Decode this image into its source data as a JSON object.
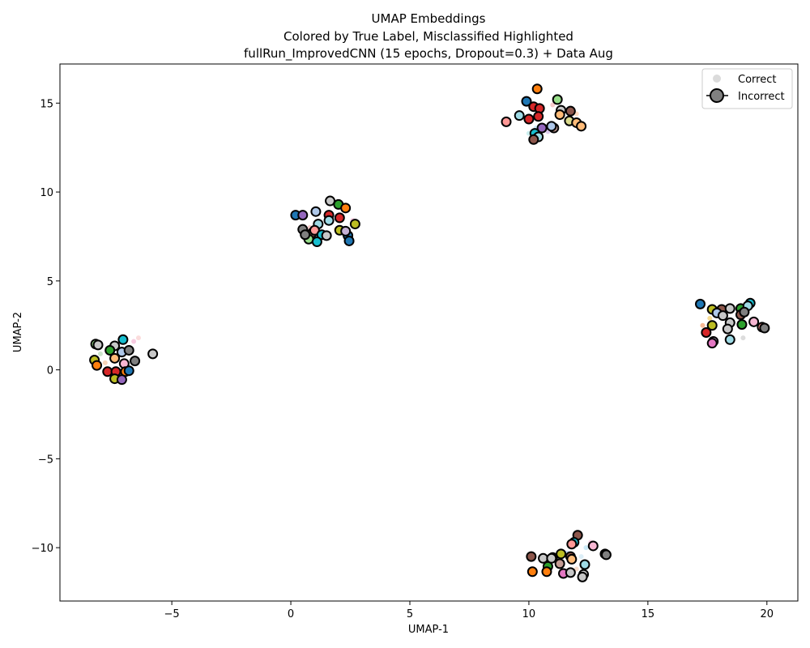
{
  "chart_data": {
    "type": "scatter",
    "title": [
      "UMAP Embeddings",
      "Colored by True Label, Misclassified Highlighted",
      "fullRun_ImprovedCNN (15 epochs, Dropout=0.3) + Data Aug"
    ],
    "xlabel": "UMAP-1",
    "ylabel": "UMAP-2",
    "xlim": [
      -9.7,
      21.3
    ],
    "ylim": [
      -13.0,
      17.2
    ],
    "xticks": [
      -5,
      0,
      5,
      10,
      15,
      20
    ],
    "yticks": [
      -10,
      -5,
      0,
      5,
      10,
      15
    ],
    "grid": false,
    "legend": {
      "placement": "top-right",
      "entries": [
        {
          "label": "Correct",
          "style": "small-grey-dot"
        },
        {
          "label": "Incorrect",
          "style": "large-outlined-dot"
        }
      ]
    },
    "series": [
      {
        "name": "Correct",
        "color": "#cccccc",
        "points": [
          [
            0.8,
            8.0,
            "#f0a0a0"
          ],
          [
            1.5,
            8.6,
            "#a0c8f0"
          ],
          [
            1.9,
            7.9,
            "#ffd080"
          ],
          [
            2.6,
            8.4,
            "#f0a0c8"
          ],
          [
            1.2,
            7.4,
            "#c8e0a0"
          ],
          [
            2.3,
            7.7,
            "#aaaaaa"
          ],
          [
            0.6,
            7.7,
            "#ffbb99"
          ],
          [
            10.3,
            13.6,
            "#a0d8f0"
          ],
          [
            10.8,
            13.4,
            "#c0a0e0"
          ],
          [
            11.4,
            14.2,
            "#f0e080"
          ],
          [
            12.0,
            14.4,
            "#ffc090"
          ],
          [
            11.0,
            14.9,
            "#f0a0a0"
          ],
          [
            10.0,
            13.3,
            "#a0e0e0"
          ],
          [
            11.7,
            13.8,
            "#d0d0d0"
          ],
          [
            -7.8,
            0.4,
            "#f0b080"
          ],
          [
            -6.6,
            1.6,
            "#f0a0c8"
          ],
          [
            -7.4,
            -0.4,
            "#f08080"
          ],
          [
            -8.0,
            0.9,
            "#a0d0a0"
          ],
          [
            -6.9,
            0.2,
            "#a0c0f0"
          ],
          [
            -6.4,
            1.8,
            "#f8c0c0"
          ],
          [
            17.6,
            2.9,
            "#f0c040"
          ],
          [
            18.4,
            2.2,
            "#a0c0f0"
          ],
          [
            19.4,
            2.6,
            "#f0a0a0"
          ],
          [
            18.9,
            3.3,
            "#a0d8a0"
          ],
          [
            17.3,
            2.5,
            "#f08040"
          ],
          [
            19.0,
            1.8,
            "#c0c0c0"
          ],
          [
            12.4,
            -10.0,
            "#a0d8f0"
          ],
          [
            12.6,
            -9.7,
            "#f0b0d0"
          ],
          [
            12.2,
            -10.5,
            "#c0e0f0"
          ],
          [
            11.6,
            -10.3,
            "#a0c0f0"
          ],
          [
            12.0,
            -11.2,
            "#f0c0a0"
          ],
          [
            11.2,
            -11.0,
            "#d0d0d0"
          ]
        ]
      },
      {
        "name": "Incorrect",
        "points": [
          [
            0.2,
            8.7,
            "#1f77b4"
          ],
          [
            0.5,
            8.7,
            "#9467bd"
          ],
          [
            1.05,
            8.9,
            "#aec7e8"
          ],
          [
            1.65,
            9.5,
            "#c7c7c7"
          ],
          [
            2.0,
            9.3,
            "#2ca02c"
          ],
          [
            2.3,
            9.1,
            "#ff7f0e"
          ],
          [
            1.6,
            8.7,
            "#d62728"
          ],
          [
            2.05,
            8.55,
            "#d62728"
          ],
          [
            1.15,
            8.2,
            "#9edae5"
          ],
          [
            1.6,
            8.4,
            "#9edae5"
          ],
          [
            2.7,
            8.2,
            "#bcbd22"
          ],
          [
            0.5,
            7.9,
            "#7f7f7f"
          ],
          [
            0.9,
            7.7,
            "#8c564b"
          ],
          [
            1.0,
            7.85,
            "#ff9896"
          ],
          [
            1.3,
            7.6,
            "#17becf"
          ],
          [
            1.5,
            7.55,
            "#c7c7c7"
          ],
          [
            2.05,
            7.85,
            "#bcbd22"
          ],
          [
            2.4,
            7.55,
            "#1f77b4"
          ],
          [
            0.75,
            7.35,
            "#98df8a"
          ],
          [
            1.1,
            7.2,
            "#17becf"
          ],
          [
            2.45,
            7.25,
            "#1f77b4"
          ],
          [
            0.6,
            7.6,
            "#7f7f7f"
          ],
          [
            2.3,
            7.8,
            "#c5b0d5"
          ],
          [
            10.35,
            15.8,
            "#ff7f0e"
          ],
          [
            9.9,
            15.1,
            "#1f77b4"
          ],
          [
            11.2,
            15.2,
            "#98df8a"
          ],
          [
            10.2,
            14.8,
            "#d62728"
          ],
          [
            10.45,
            14.7,
            "#d62728"
          ],
          [
            11.35,
            14.6,
            "#c7c7c7"
          ],
          [
            11.75,
            14.55,
            "#8c564b"
          ],
          [
            9.6,
            14.3,
            "#9edae5"
          ],
          [
            10.0,
            14.1,
            "#d62728"
          ],
          [
            10.4,
            14.25,
            "#d62728"
          ],
          [
            11.3,
            14.35,
            "#ffbb78"
          ],
          [
            11.7,
            14.0,
            "#dbdb8d"
          ],
          [
            12.0,
            13.9,
            "#ffbb78"
          ],
          [
            9.05,
            13.95,
            "#ff9896"
          ],
          [
            10.55,
            13.6,
            "#9467bd"
          ],
          [
            11.05,
            13.6,
            "#c49c94"
          ],
          [
            12.2,
            13.7,
            "#ffbb78"
          ],
          [
            10.25,
            13.3,
            "#17becf"
          ],
          [
            10.4,
            13.1,
            "#9edae5"
          ],
          [
            10.2,
            12.95,
            "#8c564b"
          ],
          [
            10.95,
            13.7,
            "#aec7e8"
          ],
          [
            -8.2,
            1.45,
            "#98df8a"
          ],
          [
            -7.05,
            1.7,
            "#17becf"
          ],
          [
            -7.4,
            1.35,
            "#c7c7c7"
          ],
          [
            -7.6,
            1.1,
            "#2ca02c"
          ],
          [
            -7.1,
            1.0,
            "#aec7e8"
          ],
          [
            -6.8,
            1.1,
            "#7f7f7f"
          ],
          [
            -5.8,
            0.9,
            "#c7c7c7"
          ],
          [
            -8.25,
            0.55,
            "#bcbd22"
          ],
          [
            -7.4,
            0.65,
            "#ffbb78"
          ],
          [
            -7.0,
            0.35,
            "#f7b6d2"
          ],
          [
            -6.55,
            0.5,
            "#7f7f7f"
          ],
          [
            -8.15,
            0.25,
            "#ff7f0e"
          ],
          [
            -7.7,
            -0.1,
            "#d62728"
          ],
          [
            -7.35,
            -0.1,
            "#d62728"
          ],
          [
            -6.95,
            -0.1,
            "#ff7f0e"
          ],
          [
            -6.8,
            -0.05,
            "#1f77b4"
          ],
          [
            -7.4,
            -0.5,
            "#bcbd22"
          ],
          [
            -7.1,
            -0.55,
            "#9467bd"
          ],
          [
            -8.1,
            1.4,
            "#c7c7c7"
          ],
          [
            17.2,
            3.7,
            "#1f77b4"
          ],
          [
            17.7,
            3.4,
            "#bcbd22"
          ],
          [
            18.1,
            3.4,
            "#8c564b"
          ],
          [
            18.45,
            3.45,
            "#c7c7c7"
          ],
          [
            18.9,
            3.45,
            "#2ca02c"
          ],
          [
            19.3,
            3.75,
            "#17becf"
          ],
          [
            19.2,
            3.6,
            "#9edae5"
          ],
          [
            17.9,
            3.2,
            "#aec7e8"
          ],
          [
            18.15,
            3.05,
            "#c7c7c7"
          ],
          [
            18.9,
            3.1,
            "#8c564b"
          ],
          [
            19.05,
            3.25,
            "#7f7f7f"
          ],
          [
            18.45,
            2.65,
            "#c7c7c7"
          ],
          [
            17.7,
            2.5,
            "#bcbd22"
          ],
          [
            18.95,
            2.55,
            "#2ca02c"
          ],
          [
            19.45,
            2.7,
            "#f7b6d2"
          ],
          [
            19.8,
            2.4,
            "#ff9896"
          ],
          [
            19.9,
            2.35,
            "#7f7f7f"
          ],
          [
            17.45,
            2.1,
            "#d62728"
          ],
          [
            17.75,
            1.6,
            "#c5b0d5"
          ],
          [
            17.7,
            1.5,
            "#e377c2"
          ],
          [
            18.45,
            1.7,
            "#9edae5"
          ],
          [
            18.35,
            2.3,
            "#c7c7c7"
          ],
          [
            12.05,
            -9.3,
            "#8c564b"
          ],
          [
            11.9,
            -9.7,
            "#17becf"
          ],
          [
            11.8,
            -9.8,
            "#ff9896"
          ],
          [
            12.7,
            -9.9,
            "#f7b6d2"
          ],
          [
            13.2,
            -10.35,
            "#c7c7c7"
          ],
          [
            13.25,
            -10.4,
            "#7f7f7f"
          ],
          [
            11.35,
            -10.35,
            "#bcbd22"
          ],
          [
            10.1,
            -10.5,
            "#8c564b"
          ],
          [
            10.6,
            -10.6,
            "#c7c7c7"
          ],
          [
            11.0,
            -10.55,
            "#dbdb8d"
          ],
          [
            11.75,
            -10.5,
            "#8c564b"
          ],
          [
            11.8,
            -10.65,
            "#ffbb78"
          ],
          [
            11.3,
            -10.9,
            "#c49c94"
          ],
          [
            10.8,
            -11.05,
            "#2ca02c"
          ],
          [
            12.35,
            -10.95,
            "#9edae5"
          ],
          [
            10.15,
            -11.35,
            "#ff7f0e"
          ],
          [
            10.75,
            -11.35,
            "#ff7f0e"
          ],
          [
            11.45,
            -11.45,
            "#e377c2"
          ],
          [
            11.75,
            -11.4,
            "#c7c7c7"
          ],
          [
            12.3,
            -11.5,
            "#c7c7c7"
          ],
          [
            12.25,
            -11.65,
            "#c7c7c7"
          ],
          [
            10.95,
            -10.6,
            "#c7c7c7"
          ]
        ]
      }
    ]
  }
}
